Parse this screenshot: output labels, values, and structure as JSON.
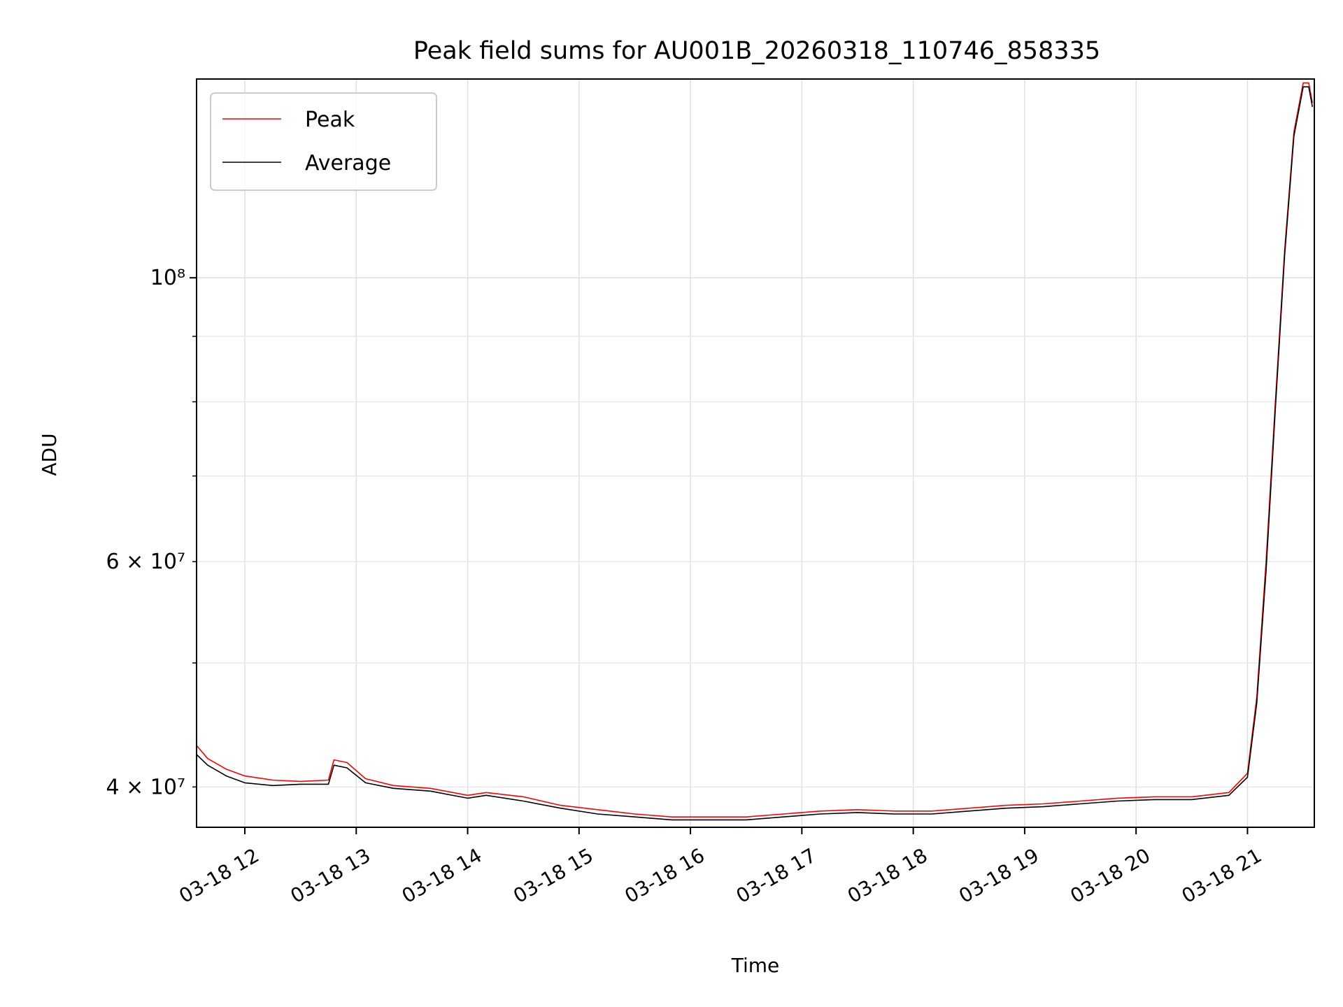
{
  "chart_data": {
    "type": "line",
    "title": "Peak field sums for AU001B_20260318_110746_858335",
    "xlabel": "Time",
    "ylabel": "ADU",
    "y_scale": "log",
    "ylim": [
      37200000,
      143000000
    ],
    "xlim": [
      "03-18 11:34",
      "03-18 21:36"
    ],
    "grid": true,
    "legend_position": "upper-left",
    "x_tick_labels": [
      "03-18 12",
      "03-18 13",
      "03-18 14",
      "03-18 15",
      "03-18 16",
      "03-18 17",
      "03-18 18",
      "03-18 19",
      "03-18 20",
      "03-18 21"
    ],
    "x_tick_times": [
      "03-18 12:00",
      "03-18 13:00",
      "03-18 14:00",
      "03-18 15:00",
      "03-18 16:00",
      "03-18 17:00",
      "03-18 18:00",
      "03-18 19:00",
      "03-18 20:00",
      "03-18 21:00"
    ],
    "y_major_ticks": [
      {
        "value": 100000000,
        "label": "10⁸"
      }
    ],
    "y_minor_ticks": [
      {
        "value": 40000000,
        "label": "4 × 10⁷"
      },
      {
        "value": 50000000,
        "label": ""
      },
      {
        "value": 60000000,
        "label": "6 × 10⁷"
      },
      {
        "value": 70000000,
        "label": ""
      },
      {
        "value": 80000000,
        "label": ""
      },
      {
        "value": 90000000,
        "label": ""
      }
    ],
    "series": [
      {
        "name": "Peak",
        "color": "#ff0000",
        "x": [
          "03-18 11:34",
          "03-18 11:40",
          "03-18 11:50",
          "03-18 12:00",
          "03-18 12:15",
          "03-18 12:30",
          "03-18 12:45",
          "03-18 12:48",
          "03-18 12:55",
          "03-18 13:05",
          "03-18 13:20",
          "03-18 13:40",
          "03-18 14:00",
          "03-18 14:10",
          "03-18 14:30",
          "03-18 14:50",
          "03-18 15:10",
          "03-18 15:30",
          "03-18 15:50",
          "03-18 16:10",
          "03-18 16:30",
          "03-18 16:50",
          "03-18 17:10",
          "03-18 17:30",
          "03-18 17:50",
          "03-18 18:10",
          "03-18 18:30",
          "03-18 18:50",
          "03-18 19:10",
          "03-18 19:30",
          "03-18 19:50",
          "03-18 20:10",
          "03-18 20:30",
          "03-18 20:50",
          "03-18 21:00",
          "03-18 21:05",
          "03-18 21:10",
          "03-18 21:15",
          "03-18 21:20",
          "03-18 21:25",
          "03-18 21:30",
          "03-18 21:33",
          "03-18 21:35"
        ],
        "y": [
          43100000,
          42100000,
          41300000,
          40800000,
          40500000,
          40400000,
          40500000,
          42000000,
          41800000,
          40600000,
          40100000,
          39900000,
          39400000,
          39600000,
          39300000,
          38700000,
          38400000,
          38100000,
          37900000,
          37900000,
          37900000,
          38100000,
          38300000,
          38400000,
          38300000,
          38300000,
          38500000,
          38700000,
          38800000,
          39000000,
          39200000,
          39300000,
          39300000,
          39600000,
          41000000,
          47000000,
          60000000,
          80000000,
          105000000,
          130000000,
          142000000,
          142000000,
          137000000
        ]
      },
      {
        "name": "Average",
        "color": "#000000",
        "x": [
          "03-18 11:34",
          "03-18 11:40",
          "03-18 11:50",
          "03-18 12:00",
          "03-18 12:15",
          "03-18 12:30",
          "03-18 12:45",
          "03-18 12:48",
          "03-18 12:55",
          "03-18 13:05",
          "03-18 13:20",
          "03-18 13:40",
          "03-18 14:00",
          "03-18 14:10",
          "03-18 14:30",
          "03-18 14:50",
          "03-18 15:10",
          "03-18 15:30",
          "03-18 15:50",
          "03-18 16:10",
          "03-18 16:30",
          "03-18 16:50",
          "03-18 17:10",
          "03-18 17:30",
          "03-18 17:50",
          "03-18 18:10",
          "03-18 18:30",
          "03-18 18:50",
          "03-18 19:10",
          "03-18 19:30",
          "03-18 19:50",
          "03-18 20:10",
          "03-18 20:30",
          "03-18 20:50",
          "03-18 21:00",
          "03-18 21:05",
          "03-18 21:10",
          "03-18 21:15",
          "03-18 21:20",
          "03-18 21:25",
          "03-18 21:30",
          "03-18 21:33",
          "03-18 21:35"
        ],
        "y": [
          42400000,
          41600000,
          40800000,
          40300000,
          40100000,
          40200000,
          40200000,
          41600000,
          41400000,
          40300000,
          39900000,
          39700000,
          39200000,
          39400000,
          39000000,
          38500000,
          38100000,
          37900000,
          37700000,
          37700000,
          37700000,
          37900000,
          38100000,
          38200000,
          38100000,
          38100000,
          38300000,
          38500000,
          38600000,
          38800000,
          39000000,
          39100000,
          39100000,
          39400000,
          40700000,
          46500000,
          59000000,
          79000000,
          104000000,
          129000000,
          141000000,
          141000000,
          136000000
        ]
      }
    ]
  }
}
